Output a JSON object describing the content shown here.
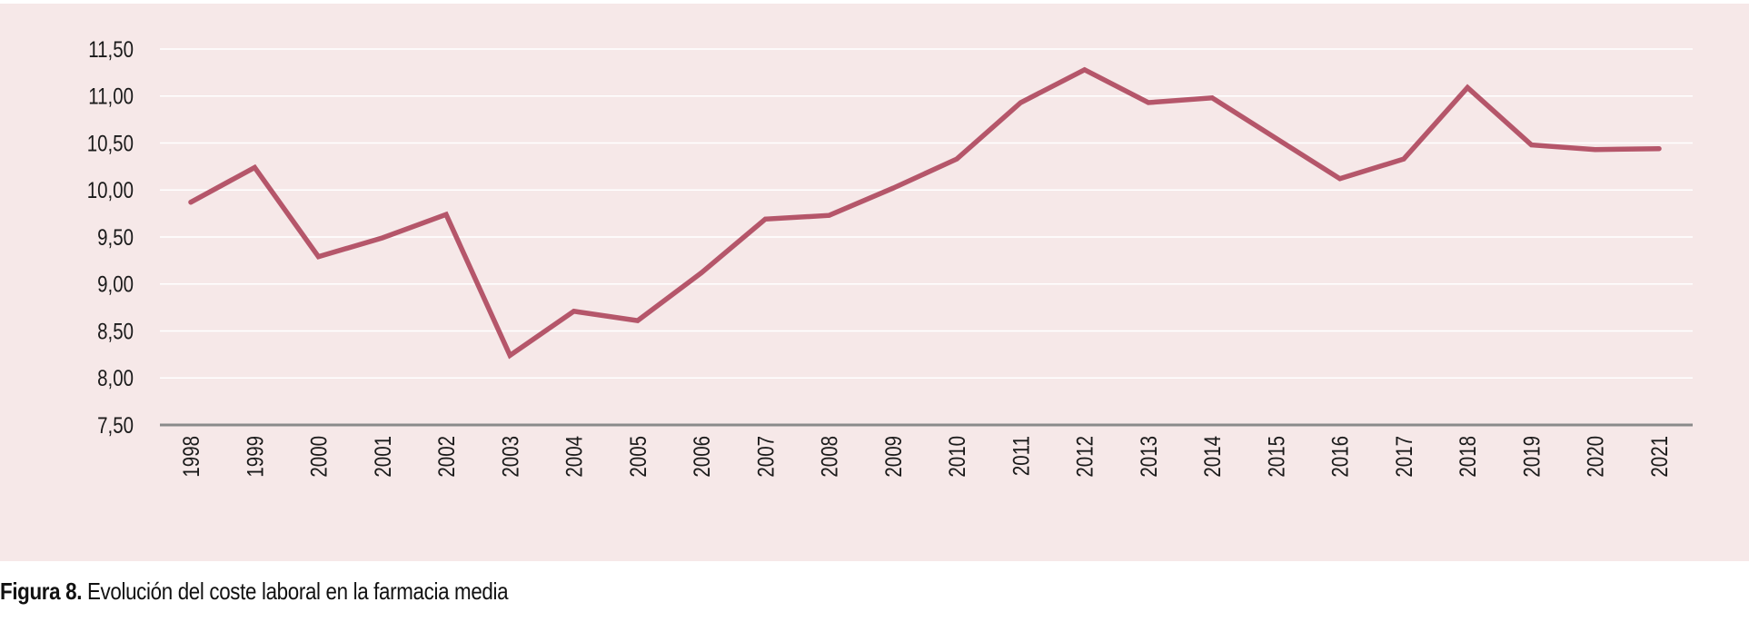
{
  "caption": {
    "label": "Figura 8.",
    "text": "Evolución del coste laboral en la farmacia media"
  },
  "colors": {
    "background": "#f6e8e8",
    "line": "#b5566a",
    "gridline": "#ffffff",
    "axis": "#8a8a8a"
  },
  "chart_data": {
    "type": "line",
    "title": "",
    "xlabel": "",
    "ylabel": "",
    "ylim": [
      7.5,
      11.5
    ],
    "grid": true,
    "y_ticks": [
      "7,50",
      "8,00",
      "8,50",
      "9,00",
      "9,50",
      "10,00",
      "10,50",
      "11,00",
      "11,50"
    ],
    "y_tick_values": [
      7.5,
      8.0,
      8.5,
      9.0,
      9.5,
      10.0,
      10.5,
      11.0,
      11.5
    ],
    "categories": [
      "1998",
      "1999",
      "2000",
      "2001",
      "2002",
      "2003",
      "2004",
      "2005",
      "2006",
      "2007",
      "2008",
      "2009",
      "2010",
      "2011",
      "2012",
      "2013",
      "2014",
      "2015",
      "2016",
      "2017",
      "2018",
      "2019",
      "2020",
      "2021"
    ],
    "series": [
      {
        "values": [
          9.87,
          10.24,
          9.29,
          9.49,
          9.74,
          8.24,
          8.71,
          8.61,
          9.12,
          9.69,
          9.73,
          10.02,
          10.33,
          10.93,
          11.28,
          10.93,
          10.98,
          10.55,
          10.12,
          10.33,
          11.09,
          10.48,
          10.43,
          10.44
        ]
      }
    ]
  }
}
